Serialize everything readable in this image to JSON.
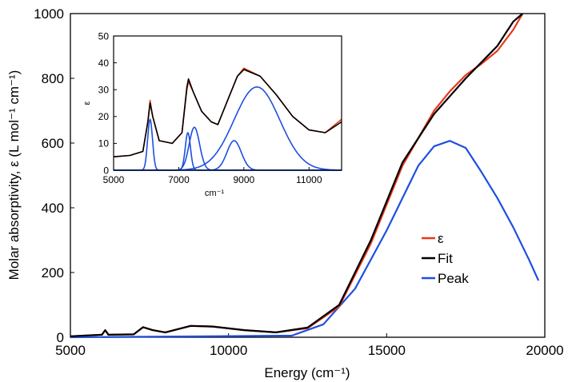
{
  "chart_data": [
    {
      "type": "line",
      "role": "main",
      "xlabel": "Energy (cm⁻¹)",
      "ylabel": "Molar absorptivity, ε (L mol⁻¹ cm⁻¹)",
      "xlim": [
        5000,
        20000
      ],
      "ylim": [
        0,
        1000
      ],
      "xticks": [
        "5000",
        "10000",
        "15000",
        "20000"
      ],
      "yticks": [
        "0",
        "200",
        "400",
        "600",
        "800",
        "1000"
      ],
      "grid": false,
      "legend": {
        "position": "right",
        "entries": [
          {
            "label": "ε",
            "color": "#e8381a"
          },
          {
            "label": "Fit",
            "color": "#000000"
          },
          {
            "label": "Peak",
            "color": "#1f4fe0"
          }
        ]
      },
      "series": [
        {
          "name": "ε",
          "color": "#e8381a",
          "x": [
            5000,
            6000,
            6100,
            6200,
            7000,
            7300,
            7600,
            8000,
            8800,
            9500,
            10500,
            11500,
            12500,
            13500,
            14500,
            15500,
            16500,
            17000,
            17500,
            18000,
            18500,
            19000,
            19300
          ],
          "y": [
            3,
            8,
            22,
            8,
            9,
            31,
            22,
            15,
            35,
            33,
            22,
            15,
            28,
            95,
            290,
            530,
            700,
            760,
            810,
            845,
            885,
            950,
            1000
          ]
        },
        {
          "name": "Fit",
          "color": "#000000",
          "x": [
            5000,
            6000,
            6100,
            6200,
            7000,
            7300,
            7600,
            8000,
            8800,
            9500,
            10500,
            11500,
            12500,
            13500,
            14500,
            15500,
            16500,
            17000,
            17500,
            18000,
            18500,
            19000,
            19300
          ],
          "y": [
            3,
            8,
            22,
            8,
            9,
            31,
            22,
            15,
            35,
            33,
            22,
            15,
            30,
            100,
            300,
            540,
            690,
            745,
            800,
            850,
            900,
            975,
            1000
          ]
        },
        {
          "name": "Peak",
          "color": "#1f4fe0",
          "x": [
            5000,
            12000,
            13000,
            14000,
            15000,
            16000,
            16500,
            17000,
            17500,
            18000,
            18500,
            19000,
            19500,
            19800
          ],
          "y": [
            0,
            5,
            40,
            150,
            330,
            530,
            590,
            607,
            585,
            510,
            430,
            340,
            240,
            175
          ]
        }
      ]
    },
    {
      "type": "line",
      "role": "inset",
      "xlabel": "cm⁻¹",
      "ylabel": "ε",
      "xlim": [
        5000,
        12000
      ],
      "ylim": [
        0,
        50
      ],
      "xticks": [
        "5000",
        "7000",
        "9000",
        "11000"
      ],
      "yticks": [
        "0",
        "10",
        "20",
        "30",
        "40",
        "50"
      ],
      "grid": false,
      "series": [
        {
          "name": "ε",
          "color": "#e8381a",
          "x": [
            5000,
            5500,
            5900,
            6050,
            6120,
            6200,
            6400,
            6800,
            7100,
            7250,
            7300,
            7450,
            7700,
            8000,
            8200,
            8500,
            8800,
            9000,
            9500,
            10000,
            10500,
            11000,
            11500,
            12000
          ],
          "y": [
            5,
            5.5,
            7,
            18,
            26,
            20,
            11,
            10,
            14,
            30,
            33,
            29,
            22,
            18,
            17,
            26,
            35,
            38,
            35,
            28,
            20,
            15,
            14,
            19
          ]
        },
        {
          "name": "Fit",
          "color": "#000000",
          "x": [
            5000,
            5500,
            5900,
            6050,
            6120,
            6200,
            6400,
            6800,
            7100,
            7250,
            7300,
            7450,
            7700,
            8000,
            8200,
            8500,
            8800,
            9000,
            9500,
            10000,
            10500,
            11000,
            11500,
            12000
          ],
          "y": [
            5,
            5.5,
            7,
            18,
            25,
            20,
            11,
            10,
            14,
            31,
            34,
            29,
            22,
            18,
            17,
            26,
            35,
            37.5,
            35,
            28,
            20,
            15,
            14,
            18
          ]
        }
      ],
      "peaks": [
        {
          "center": 6120,
          "height": 19,
          "width": 75
        },
        {
          "center": 7280,
          "height": 14,
          "width": 80
        },
        {
          "center": 7480,
          "height": 16,
          "width": 160
        },
        {
          "center": 8700,
          "height": 11,
          "width": 220
        },
        {
          "center": 9400,
          "height": 31,
          "width": 700
        }
      ]
    }
  ]
}
